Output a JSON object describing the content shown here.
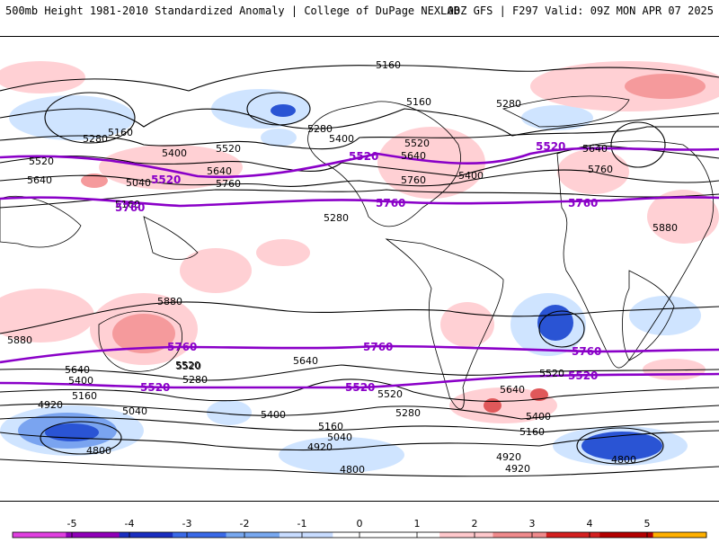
{
  "header": {
    "title": "500mb Height 1981-2010 Standardized Anomaly | College of DuPage NEXLAB",
    "run_info": "00Z GFS | F297 Valid: 09Z MON APR 07 2025"
  },
  "map": {
    "thin_contour_labels": [
      "5160",
      "5160",
      "5280",
      "5280",
      "5280",
      "5160",
      "5400",
      "5520",
      "5520",
      "5640",
      "5640",
      "5760",
      "5520",
      "5640",
      "5760",
      "5880",
      "5880",
      "5880",
      "5640",
      "5760",
      "5640",
      "5520",
      "5400",
      "5160",
      "5280",
      "5520",
      "5400",
      "5280",
      "5160",
      "5040",
      "4920",
      "4920",
      "4800",
      "5040",
      "5160",
      "4920",
      "4800",
      "5400",
      "5520",
      "5640",
      "5160",
      "5280",
      "5040",
      "4920",
      "4800",
      "5400",
      "5640",
      "5520",
      "5400"
    ],
    "bold_contour_labels": [
      "5520",
      "5520",
      "5520",
      "5760",
      "5760",
      "5760",
      "5760",
      "5760",
      "5760",
      "5520",
      "5520",
      "5520"
    ],
    "colors": {
      "neg_light": "#cfe4ff",
      "neg_mid": "#7aa4f0",
      "neg_strong": "#2a54d4",
      "pos_light": "#ffd0d4",
      "pos_mid": "#f59a9c",
      "pos_strong": "#e0585a",
      "bold_contour": "#8a00c8"
    }
  },
  "colorbar": {
    "ticks": [
      "-5",
      "-4",
      "-3",
      "-2",
      "-1",
      "0",
      "1",
      "2",
      "3",
      "4",
      "5"
    ],
    "colors": [
      "#e040e0",
      "#9000b8",
      "#1a2ec0",
      "#3a6ae8",
      "#78a8f0",
      "#c8dcff",
      "#ffffff",
      "#ffffff",
      "#ffc8cc",
      "#f08a8c",
      "#d42020",
      "#b40000",
      "#ffb000"
    ]
  }
}
